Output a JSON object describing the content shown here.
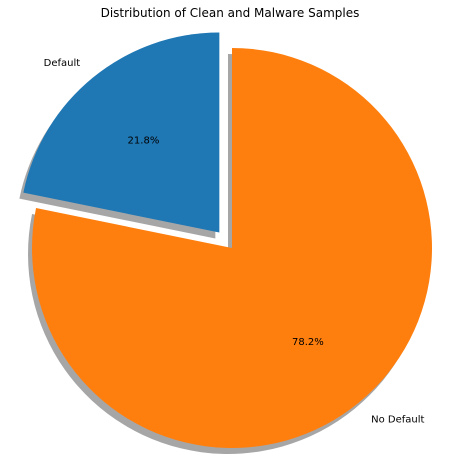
{
  "chart_data": {
    "type": "pie",
    "title": "Distribution of Clean and Malware Samples",
    "labels": [
      "Default",
      "No Default"
    ],
    "values": [
      21.8,
      78.2
    ],
    "value_labels": [
      "21.8%",
      "78.2%"
    ],
    "colors": [
      "#1f77b4",
      "#ff7f0e"
    ],
    "start_angle_deg": 90,
    "direction": "counterclockwise",
    "explode": [
      0.1,
      0
    ],
    "shadow": true
  }
}
